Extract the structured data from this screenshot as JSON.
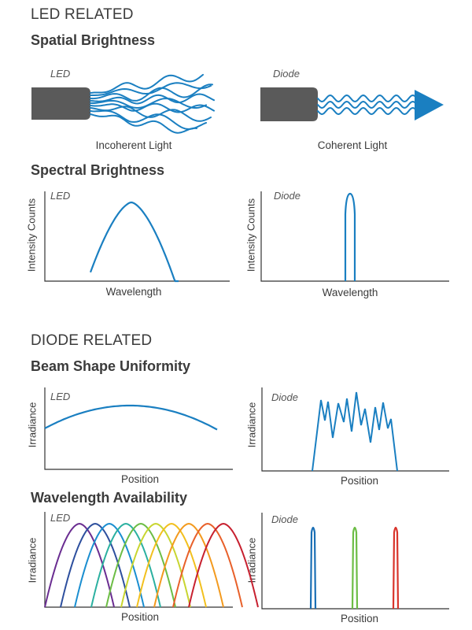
{
  "sections": {
    "led_related": "LED RELATED",
    "diode_related": "DIODE RELATED"
  },
  "panels": {
    "spatial": {
      "title": "Spatial Brightness",
      "left_tag": "LED",
      "left_caption": "Incoherent Light",
      "right_tag": "Diode",
      "right_caption": "Coherent Light"
    },
    "spectral": {
      "title": "Spectral Brightness",
      "left_tag": "LED",
      "right_tag": "Diode",
      "ylabel": "Intensity Counts",
      "xlabel": "Wavelength"
    },
    "beam": {
      "title": "Beam Shape Uniformity",
      "left_tag": "LED",
      "right_tag": "Diode",
      "ylabel": "Irradiance",
      "xlabel": "Position"
    },
    "wavelength": {
      "title": "Wavelength Availability",
      "left_tag": "LED",
      "right_tag": "Diode",
      "ylabel": "Irradiance",
      "xlabel": "Position"
    }
  },
  "colors": {
    "curve": "#1a7fc1",
    "axis": "#333333",
    "emitter": "#5a5a5a",
    "led_spectrum": [
      "#6a2d91",
      "#2d4f9e",
      "#1a8ed0",
      "#2bb0a0",
      "#6cbd45",
      "#c8d530",
      "#f2c01e",
      "#f39a1e",
      "#e8602a",
      "#c7202f"
    ],
    "diode_lines": [
      "#1a6fb5",
      "#6cbd45",
      "#d9342b"
    ]
  }
}
